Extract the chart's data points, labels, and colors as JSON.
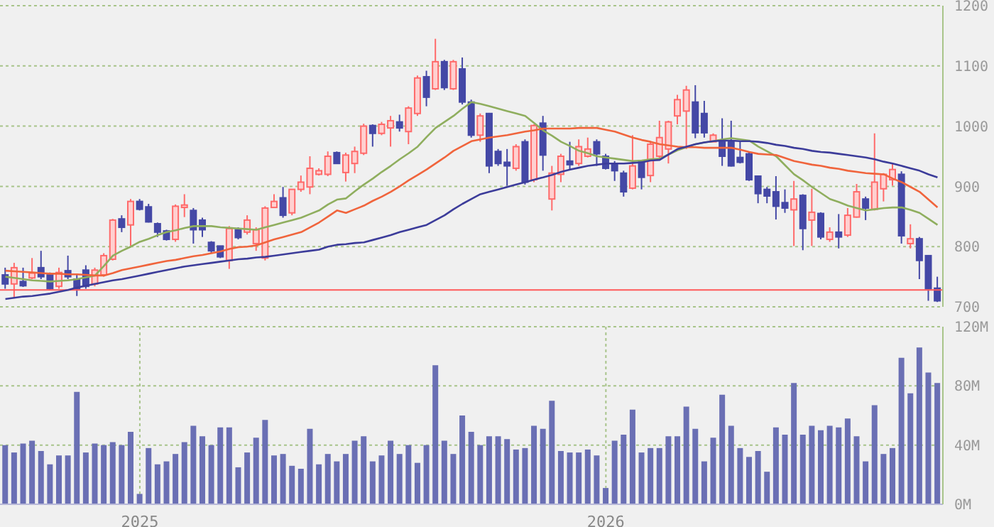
{
  "chart_data": [
    {
      "type": "candlestick",
      "categories": [
        null,
        null,
        null,
        null,
        null,
        null,
        null,
        null,
        null,
        null,
        null,
        null,
        null,
        null,
        null,
        null,
        null,
        null,
        null,
        null,
        null,
        null,
        null,
        null,
        null,
        null,
        null,
        null,
        null,
        null,
        null,
        null,
        null,
        null,
        null,
        null,
        null,
        null,
        null,
        null,
        null,
        null,
        null,
        null,
        null,
        null,
        null,
        null,
        null,
        null,
        null,
        null,
        null,
        null,
        null,
        null,
        null,
        null,
        null,
        null,
        null,
        null,
        null,
        null,
        null,
        null,
        null,
        null,
        null,
        null,
        null,
        null,
        null,
        null,
        null,
        null,
        null,
        null,
        null,
        null,
        null,
        null,
        null,
        null,
        null,
        null,
        null,
        null,
        null,
        null,
        null,
        null,
        null,
        null,
        null,
        null,
        null,
        null,
        null,
        null,
        null,
        null,
        null,
        null,
        null
      ],
      "ohlc": [
        [
          753,
          765,
          730,
          738
        ],
        [
          738,
          773,
          714,
          765
        ],
        [
          742,
          765,
          733,
          735
        ],
        [
          748,
          781,
          746,
          756
        ],
        [
          765,
          793,
          746,
          750
        ],
        [
          753,
          757,
          728,
          730
        ],
        [
          734,
          765,
          730,
          757
        ],
        [
          760,
          785,
          746,
          750
        ],
        [
          746,
          753,
          718,
          730
        ],
        [
          761,
          769,
          730,
          734
        ],
        [
          738,
          765,
          734,
          761
        ],
        [
          753,
          789,
          750,
          785
        ],
        [
          779,
          846,
          777,
          844
        ],
        [
          846,
          852,
          824,
          832
        ],
        [
          836,
          879,
          801,
          875
        ],
        [
          875,
          879,
          860,
          862
        ],
        [
          866,
          871,
          840,
          841
        ],
        [
          838,
          840,
          816,
          824
        ],
        [
          826,
          828,
          810,
          812
        ],
        [
          812,
          870,
          808,
          867
        ],
        [
          865,
          887,
          849,
          869
        ],
        [
          860,
          864,
          805,
          828
        ],
        [
          844,
          848,
          816,
          828
        ],
        [
          807,
          809,
          789,
          793
        ],
        [
          801,
          801,
          781,
          783
        ],
        [
          777,
          834,
          763,
          830
        ],
        [
          828,
          832,
          812,
          815
        ],
        [
          824,
          852,
          820,
          844
        ],
        [
          805,
          832,
          793,
          828
        ],
        [
          781,
          867,
          777,
          864
        ],
        [
          865,
          887,
          864,
          875
        ],
        [
          881,
          899,
          848,
          852
        ],
        [
          856,
          895,
          852,
          895
        ],
        [
          895,
          918,
          891,
          907
        ],
        [
          899,
          950,
          887,
          930
        ],
        [
          920,
          930,
          918,
          926
        ],
        [
          920,
          958,
          917,
          950
        ],
        [
          956,
          958,
          938,
          938
        ],
        [
          923,
          956,
          908,
          952
        ],
        [
          938,
          966,
          922,
          958
        ],
        [
          955,
          1004,
          952,
          1000
        ],
        [
          1001,
          1003,
          966,
          988
        ],
        [
          988,
          1007,
          985,
          1003
        ],
        [
          997,
          1017,
          966,
          1009
        ],
        [
          1007,
          1019,
          991,
          997
        ],
        [
          991,
          1033,
          970,
          1030
        ],
        [
          1021,
          1084,
          1017,
          1080
        ],
        [
          1082,
          1092,
          1033,
          1048
        ],
        [
          1062,
          1145,
          1060,
          1107
        ],
        [
          1107,
          1110,
          1060,
          1064
        ],
        [
          1062,
          1110,
          1060,
          1107
        ],
        [
          1095,
          1114,
          1036,
          1040
        ],
        [
          1040,
          1044,
          981,
          985
        ],
        [
          985,
          1021,
          974,
          1017
        ],
        [
          1021,
          1022,
          922,
          934
        ],
        [
          958,
          962,
          934,
          938
        ],
        [
          940,
          962,
          901,
          934
        ],
        [
          930,
          970,
          926,
          966
        ],
        [
          974,
          978,
          903,
          907
        ],
        [
          911,
          1003,
          907,
          1001
        ],
        [
          1005,
          1017,
          926,
          952
        ],
        [
          879,
          934,
          860,
          922
        ],
        [
          920,
          954,
          907,
          950
        ],
        [
          942,
          974,
          928,
          936
        ],
        [
          938,
          978,
          934,
          966
        ],
        [
          950,
          981,
          948,
          962
        ],
        [
          974,
          978,
          934,
          954
        ],
        [
          950,
          954,
          928,
          930
        ],
        [
          938,
          942,
          909,
          926
        ],
        [
          922,
          926,
          883,
          891
        ],
        [
          897,
          985,
          895,
          934
        ],
        [
          942,
          944,
          895,
          915
        ],
        [
          918,
          974,
          907,
          970
        ],
        [
          950,
          1009,
          946,
          981
        ],
        [
          962,
          1009,
          938,
          1007
        ],
        [
          1017,
          1052,
          1003,
          1044
        ],
        [
          1025,
          1067,
          962,
          1060
        ],
        [
          1040,
          1068,
          980,
          989
        ],
        [
          1021,
          1042,
          981,
          989
        ],
        [
          974,
          988,
          974,
          985
        ],
        [
          974,
          1013,
          934,
          950
        ],
        [
          974,
          1009,
          933,
          934
        ],
        [
          948,
          974,
          938,
          940
        ],
        [
          954,
          958,
          909,
          911
        ],
        [
          917,
          918,
          872,
          888
        ],
        [
          895,
          899,
          872,
          884
        ],
        [
          891,
          917,
          845,
          867
        ],
        [
          873,
          895,
          856,
          864
        ],
        [
          861,
          909,
          801,
          879
        ],
        [
          885,
          887,
          794,
          830
        ],
        [
          844,
          896,
          801,
          857
        ],
        [
          855,
          857,
          812,
          816
        ],
        [
          812,
          832,
          808,
          824
        ],
        [
          824,
          854,
          797,
          816
        ],
        [
          819,
          864,
          816,
          852
        ],
        [
          849,
          904,
          848,
          891
        ],
        [
          879,
          883,
          844,
          864
        ],
        [
          862,
          988,
          860,
          907
        ],
        [
          896,
          922,
          875,
          920
        ],
        [
          911,
          938,
          901,
          928
        ],
        [
          920,
          925,
          805,
          818
        ],
        [
          805,
          837,
          797,
          813
        ],
        [
          813,
          816,
          746,
          777
        ],
        [
          785,
          786,
          710,
          730
        ],
        [
          731,
          750,
          708,
          710
        ]
      ],
      "series": [
        {
          "type": "line",
          "color": "#8fae5e",
          "values": [
            750,
            748,
            746,
            744,
            743,
            742,
            743,
            744,
            746,
            749,
            752,
            768,
            785,
            793,
            800,
            808,
            813,
            819,
            824,
            827,
            831,
            834,
            834,
            834,
            832,
            831,
            830,
            829,
            828,
            832,
            836,
            840,
            844,
            848,
            854,
            860,
            870,
            878,
            880,
            892,
            903,
            913,
            924,
            934,
            945,
            955,
            966,
            982,
            997,
            1007,
            1017,
            1029,
            1040,
            1037,
            1033,
            1029,
            1025,
            1021,
            1017,
            1005,
            993,
            984,
            974,
            967,
            959,
            955,
            950,
            948,
            946,
            944,
            942,
            943,
            945,
            946,
            953,
            960,
            965,
            970,
            973,
            975,
            978,
            980,
            978,
            976,
            966,
            958,
            950,
            935,
            920,
            910,
            899,
            889,
            879,
            874,
            868,
            864,
            860,
            862,
            864,
            865,
            865,
            861,
            856,
            846,
            836
          ]
        },
        {
          "type": "line",
          "color": "#f0643c",
          "values": [
            760,
            759,
            758,
            757,
            756,
            755,
            755,
            754,
            754,
            753,
            752,
            752,
            756,
            761,
            764,
            767,
            770,
            773,
            776,
            778,
            781,
            784,
            786,
            789,
            792,
            796,
            799,
            800,
            802,
            807,
            812,
            816,
            820,
            824,
            832,
            840,
            850,
            860,
            856,
            862,
            868,
            876,
            883,
            891,
            900,
            910,
            919,
            928,
            938,
            948,
            959,
            967,
            975,
            978,
            981,
            983,
            985,
            988,
            991,
            993,
            996,
            996,
            996,
            996,
            997,
            997,
            997,
            994,
            991,
            986,
            981,
            977,
            974,
            970,
            968,
            966,
            965,
            965,
            964,
            964,
            964,
            964,
            961,
            957,
            954,
            953,
            952,
            947,
            942,
            939,
            936,
            934,
            931,
            929,
            926,
            924,
            922,
            921,
            920,
            913,
            907,
            899,
            891,
            878,
            865
          ]
        },
        {
          "type": "line",
          "color": "#3c3c9a",
          "values": [
            713,
            715,
            717,
            718,
            720,
            722,
            725,
            728,
            732,
            735,
            738,
            741,
            744,
            746,
            749,
            752,
            755,
            758,
            761,
            764,
            767,
            769,
            771,
            773,
            775,
            777,
            779,
            780,
            782,
            783,
            785,
            787,
            789,
            791,
            793,
            795,
            800,
            803,
            804,
            806,
            807,
            811,
            815,
            819,
            824,
            828,
            832,
            836,
            844,
            852,
            862,
            871,
            879,
            887,
            891,
            895,
            899,
            903,
            907,
            911,
            915,
            919,
            924,
            928,
            931,
            934,
            936,
            938,
            938,
            938,
            939,
            940,
            943,
            944,
            953,
            962,
            966,
            970,
            973,
            975,
            976,
            976,
            975,
            975,
            974,
            972,
            969,
            967,
            964,
            962,
            959,
            957,
            956,
            954,
            952,
            950,
            948,
            945,
            941,
            938,
            934,
            930,
            926,
            920,
            915
          ]
        }
      ],
      "ylim": [
        700,
        1200
      ],
      "yticks": [
        700,
        800,
        900,
        1000,
        1100,
        1200
      ],
      "ref_lines": [
        {
          "axis": "y",
          "value": 728,
          "color": "#ff5a5a"
        }
      ],
      "grid": true,
      "legend": false,
      "marker": "none",
      "tick_labels": "y"
    },
    {
      "type": "bar",
      "categories": [
        null,
        null,
        null,
        null,
        null,
        null,
        null,
        null,
        null,
        null,
        null,
        null,
        null,
        null,
        null,
        "2025",
        null,
        null,
        null,
        null,
        null,
        null,
        null,
        null,
        null,
        null,
        null,
        null,
        null,
        null,
        null,
        null,
        null,
        null,
        null,
        null,
        null,
        null,
        null,
        null,
        null,
        null,
        null,
        null,
        null,
        null,
        null,
        null,
        null,
        null,
        null,
        null,
        null,
        null,
        null,
        null,
        null,
        null,
        null,
        null,
        null,
        null,
        null,
        null,
        null,
        null,
        null,
        "2026",
        null,
        null,
        null,
        null,
        null,
        null,
        null,
        null,
        null,
        null,
        null,
        null,
        null,
        null,
        null,
        null,
        null,
        null,
        null,
        null,
        null,
        null,
        null,
        null,
        null,
        null,
        null,
        null,
        null,
        null,
        null,
        null,
        null,
        null,
        null,
        null,
        null
      ],
      "values": [
        40,
        35,
        41,
        43,
        36,
        27,
        33,
        33,
        76,
        35,
        41,
        40,
        42,
        40,
        49,
        7,
        38,
        27,
        29,
        34,
        42,
        53,
        46,
        40,
        52,
        52,
        25,
        35,
        45,
        57,
        33,
        34,
        26,
        24,
        51,
        27,
        34,
        29,
        34,
        43,
        46,
        29,
        33,
        43,
        34,
        40,
        28,
        40,
        94,
        43,
        34,
        60,
        49,
        40,
        46,
        46,
        44,
        37,
        38,
        53,
        51,
        70,
        36,
        35,
        35,
        37,
        33,
        11,
        43,
        47,
        64,
        35,
        38,
        38,
        46,
        46,
        66,
        51,
        29,
        45,
        74,
        53,
        38,
        32,
        36,
        22,
        52,
        47,
        82,
        47,
        53,
        50,
        53,
        52,
        58,
        46,
        29,
        67,
        34,
        38,
        99,
        75,
        106,
        89,
        82
      ],
      "color": "#6a6fb4",
      "ylim": [
        0,
        120
      ],
      "yticks": [
        {
          "value": 0,
          "label": "0M"
        },
        {
          "value": 40,
          "label": "40M"
        },
        {
          "value": 80,
          "label": "80M"
        },
        {
          "value": 120,
          "label": "120M"
        }
      ],
      "grid": true,
      "legend": false
    }
  ]
}
